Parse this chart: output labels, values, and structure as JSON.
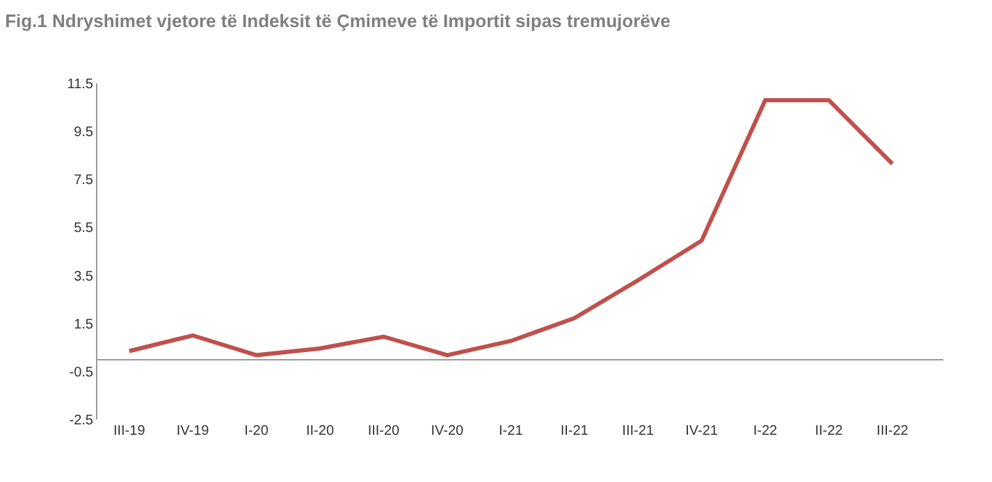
{
  "chart_data": {
    "type": "line",
    "title": "Fig.1 Ndryshimet vjetore të Indeksit të Çmimeve të Importit sipas tremujorëve",
    "categories": [
      "III-19",
      "IV-19",
      "I-20",
      "II-20",
      "III-20",
      "IV-20",
      "I-21",
      "II-21",
      "III-21",
      "IV-21",
      "I-22",
      "II-22",
      "III-22"
    ],
    "series": [
      {
        "color": "#c0504d",
        "values": [
          0.35,
          1.0,
          0.18,
          0.46,
          0.95,
          0.18,
          0.77,
          1.72,
          3.3,
          4.95,
          10.8,
          10.8,
          8.15
        ]
      }
    ],
    "ylim": [
      -2.5,
      11.5
    ],
    "yticks": [
      -2.5,
      -0.5,
      1.5,
      3.5,
      5.5,
      7.5,
      9.5,
      11.5
    ],
    "marker": "none",
    "line_style": "solid"
  }
}
